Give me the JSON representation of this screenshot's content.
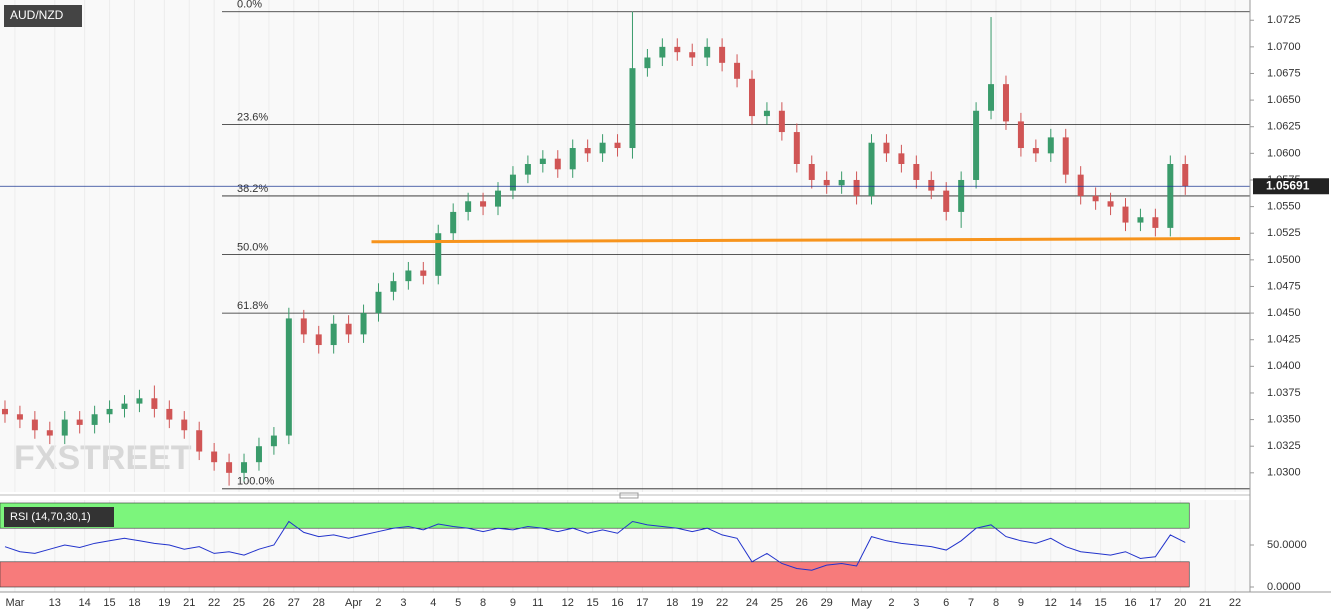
{
  "chart_data": {
    "type": "candlestick",
    "title": "AUD/NZD",
    "watermark": "FXSTREET",
    "up_color": "#3a9b6b",
    "down_color": "#d05555",
    "x": [
      0,
      3,
      6,
      9,
      12,
      15,
      18,
      21,
      24,
      27,
      30,
      33,
      36,
      39,
      42,
      45,
      48,
      51,
      54,
      57,
      60,
      63,
      66,
      69,
      72,
      75,
      78,
      81,
      84,
      87,
      90,
      93,
      96,
      99,
      102,
      105,
      108,
      111,
      114,
      117,
      120,
      123,
      126,
      129,
      132,
      135,
      138,
      141,
      144,
      147,
      150,
      153,
      156,
      159,
      162,
      165,
      168,
      171,
      174,
      177,
      180,
      183,
      186,
      189,
      192,
      195,
      198,
      201,
      204,
      207,
      210,
      213,
      216,
      219,
      222,
      225,
      228,
      231,
      234,
      237
    ],
    "open": [
      1.036,
      1.0355,
      1.035,
      1.034,
      1.0335,
      1.035,
      1.0345,
      1.0355,
      1.036,
      1.0365,
      1.037,
      1.036,
      1.035,
      1.034,
      1.032,
      1.031,
      1.03,
      1.031,
      1.0325,
      1.0335,
      1.0445,
      1.043,
      1.042,
      1.044,
      1.043,
      1.045,
      1.047,
      1.048,
      1.049,
      1.0485,
      1.0525,
      1.0545,
      1.0555,
      1.055,
      1.0565,
      1.058,
      1.059,
      1.0595,
      1.0585,
      1.0605,
      1.06,
      1.061,
      1.0605,
      1.068,
      1.069,
      1.07,
      1.0695,
      1.069,
      1.07,
      1.0685,
      1.067,
      1.0635,
      1.064,
      1.062,
      1.059,
      1.0575,
      1.057,
      1.0575,
      1.056,
      1.061,
      1.06,
      1.059,
      1.0575,
      1.0565,
      1.0545,
      1.0575,
      1.064,
      1.0665,
      1.063,
      1.0605,
      1.06,
      1.0615,
      1.058,
      1.056,
      1.0555,
      1.055,
      1.0535,
      1.054,
      1.053,
      1.059
    ],
    "high": [
      1.0368,
      1.0363,
      1.0358,
      1.0348,
      1.0358,
      1.0358,
      1.0363,
      1.0368,
      1.0373,
      1.0378,
      1.0382,
      1.0368,
      1.0358,
      1.0348,
      1.0328,
      1.0318,
      1.0318,
      1.0333,
      1.0343,
      1.0455,
      1.0453,
      1.0438,
      1.0448,
      1.0448,
      1.0458,
      1.0478,
      1.0488,
      1.0498,
      1.0498,
      1.0533,
      1.0553,
      1.0563,
      1.0563,
      1.0573,
      1.0588,
      1.0598,
      1.0603,
      1.0603,
      1.0613,
      1.0613,
      1.0618,
      1.0618,
      1.0733,
      1.0698,
      1.0708,
      1.0708,
      1.0703,
      1.0708,
      1.0708,
      1.0693,
      1.0678,
      1.0648,
      1.0648,
      1.0628,
      1.0598,
      1.0583,
      1.0583,
      1.0583,
      1.0618,
      1.0618,
      1.0608,
      1.0598,
      1.0583,
      1.0573,
      1.0583,
      1.0648,
      1.0728,
      1.0673,
      1.0638,
      1.0613,
      1.0623,
      1.0623,
      1.0588,
      1.0568,
      1.0563,
      1.0558,
      1.0548,
      1.0548,
      1.0598,
      1.0598
    ],
    "low": [
      1.0347,
      1.0342,
      1.0332,
      1.0327,
      1.0327,
      1.0337,
      1.0337,
      1.0347,
      1.0352,
      1.0357,
      1.0352,
      1.0342,
      1.0332,
      1.0312,
      1.0302,
      1.0288,
      1.0292,
      1.0302,
      1.0317,
      1.0327,
      1.0422,
      1.0412,
      1.0412,
      1.0422,
      1.0422,
      1.0442,
      1.0462,
      1.0472,
      1.0477,
      1.0477,
      1.0517,
      1.0537,
      1.0542,
      1.0542,
      1.0557,
      1.0572,
      1.0582,
      1.0577,
      1.0577,
      1.0592,
      1.0592,
      1.0597,
      1.0595,
      1.0672,
      1.0682,
      1.0687,
      1.0682,
      1.0682,
      1.0677,
      1.0662,
      1.0627,
      1.0627,
      1.0612,
      1.0582,
      1.0567,
      1.0562,
      1.0562,
      1.0552,
      1.0552,
      1.0592,
      1.0582,
      1.0567,
      1.0557,
      1.0537,
      1.053,
      1.0567,
      1.0632,
      1.0622,
      1.0597,
      1.0592,
      1.0592,
      1.0572,
      1.0552,
      1.0547,
      1.0542,
      1.0527,
      1.0527,
      1.0522,
      1.0522,
      1.0561
    ],
    "close": [
      1.0355,
      1.035,
      1.034,
      1.0335,
      1.035,
      1.0345,
      1.0355,
      1.036,
      1.0365,
      1.037,
      1.036,
      1.035,
      1.034,
      1.032,
      1.031,
      1.03,
      1.031,
      1.0325,
      1.0335,
      1.0445,
      1.043,
      1.042,
      1.044,
      1.043,
      1.045,
      1.047,
      1.048,
      1.049,
      1.0485,
      1.0525,
      1.0545,
      1.0555,
      1.055,
      1.0565,
      1.058,
      1.059,
      1.0595,
      1.0585,
      1.0605,
      1.06,
      1.061,
      1.0605,
      1.068,
      1.069,
      1.07,
      1.0695,
      1.069,
      1.07,
      1.0685,
      1.067,
      1.0635,
      1.064,
      1.062,
      1.059,
      1.0575,
      1.057,
      1.0575,
      1.056,
      1.061,
      1.06,
      1.059,
      1.0575,
      1.0565,
      1.0545,
      1.0575,
      1.064,
      1.0665,
      1.063,
      1.0605,
      1.06,
      1.0615,
      1.058,
      1.056,
      1.0555,
      1.055,
      1.0535,
      1.054,
      1.053,
      1.059,
      1.05691
    ],
    "last_color": "#1f3a93",
    "xlim": [
      -1,
      250
    ],
    "ylim": [
      1.0282,
      1.0744
    ],
    "yticks": [
      {
        "value": 1.03,
        "label": "1.0300"
      },
      {
        "value": 1.0325,
        "label": "1.0325"
      },
      {
        "value": 1.035,
        "label": "1.0350"
      },
      {
        "value": 1.0375,
        "label": "1.0375"
      },
      {
        "value": 1.04,
        "label": "1.0400"
      },
      {
        "value": 1.0425,
        "label": "1.0425"
      },
      {
        "value": 1.045,
        "label": "1.0450"
      },
      {
        "value": 1.0475,
        "label": "1.0475"
      },
      {
        "value": 1.05,
        "label": "1.0500"
      },
      {
        "value": 1.0525,
        "label": "1.0525"
      },
      {
        "value": 1.055,
        "label": "1.0550"
      },
      {
        "value": 1.0575,
        "label": "1.0575"
      },
      {
        "value": 1.06,
        "label": "1.0600"
      },
      {
        "value": 1.0625,
        "label": "1.0625"
      },
      {
        "value": 1.065,
        "label": "1.0650"
      },
      {
        "value": 1.0675,
        "label": "1.0675"
      },
      {
        "value": 1.07,
        "label": "1.0700"
      },
      {
        "value": 1.0725,
        "label": "1.0725"
      }
    ],
    "xticks": [
      {
        "value": 2,
        "label": "Mar"
      },
      {
        "value": 10,
        "label": "13"
      },
      {
        "value": 16,
        "label": "14"
      },
      {
        "value": 21,
        "label": "15"
      },
      {
        "value": 26,
        "label": "18"
      },
      {
        "value": 32,
        "label": "19"
      },
      {
        "value": 37,
        "label": "21"
      },
      {
        "value": 42,
        "label": "22"
      },
      {
        "value": 47,
        "label": "25"
      },
      {
        "value": 53,
        "label": "26"
      },
      {
        "value": 58,
        "label": "27"
      },
      {
        "value": 63,
        "label": "28"
      },
      {
        "value": 70,
        "label": "Apr"
      },
      {
        "value": 75,
        "label": "2"
      },
      {
        "value": 80,
        "label": "3"
      },
      {
        "value": 86,
        "label": "4"
      },
      {
        "value": 91,
        "label": "5"
      },
      {
        "value": 96,
        "label": "8"
      },
      {
        "value": 102,
        "label": "9"
      },
      {
        "value": 107,
        "label": "11"
      },
      {
        "value": 113,
        "label": "12"
      },
      {
        "value": 118,
        "label": "15"
      },
      {
        "value": 123,
        "label": "16"
      },
      {
        "value": 128,
        "label": "17"
      },
      {
        "value": 134,
        "label": "18"
      },
      {
        "value": 139,
        "label": "19"
      },
      {
        "value": 144,
        "label": "22"
      },
      {
        "value": 150,
        "label": "24"
      },
      {
        "value": 155,
        "label": "25"
      },
      {
        "value": 160,
        "label": "26"
      },
      {
        "value": 165,
        "label": "29"
      },
      {
        "value": 172,
        "label": "May"
      },
      {
        "value": 178,
        "label": "2"
      },
      {
        "value": 183,
        "label": "3"
      },
      {
        "value": 189,
        "label": "6"
      },
      {
        "value": 194,
        "label": "7"
      },
      {
        "value": 199,
        "label": "8"
      },
      {
        "value": 204,
        "label": "9"
      },
      {
        "value": 210,
        "label": "12"
      },
      {
        "value": 215,
        "label": "14"
      },
      {
        "value": 220,
        "label": "15"
      },
      {
        "value": 226,
        "label": "16"
      },
      {
        "value": 231,
        "label": "17"
      },
      {
        "value": 236,
        "label": "20"
      },
      {
        "value": 241,
        "label": "21"
      },
      {
        "value": 247,
        "label": "22"
      }
    ],
    "grid": true,
    "fib": [
      {
        "value": 1.0733,
        "label": "0.0%"
      },
      {
        "value": 1.0627,
        "label": "23.6%"
      },
      {
        "value": 1.056,
        "label": "38.2%"
      },
      {
        "value": 1.0505,
        "label": "50.0%"
      },
      {
        "value": 1.045,
        "label": "61.8%"
      },
      {
        "value": 1.0285,
        "label": "100.0%"
      }
    ],
    "trendline": {
      "x": [
        73.6,
        248
      ],
      "y": [
        1.0517,
        1.052
      ],
      "color": "#f7941d"
    },
    "rsi": {
      "title": "RSI (14,70,30,1)",
      "color": "#2233cc",
      "upper": 70,
      "lower": 30,
      "ylim": [
        0,
        100
      ],
      "yticks": [
        {
          "value": 50,
          "label": "50.0000"
        },
        {
          "value": 0,
          "label": "0.0000"
        }
      ],
      "values": [
        48,
        42,
        40,
        45,
        50,
        47,
        52,
        55,
        58,
        55,
        52,
        50,
        45,
        48,
        40,
        42,
        38,
        45,
        50,
        78,
        65,
        60,
        62,
        58,
        62,
        66,
        70,
        72,
        68,
        75,
        72,
        70,
        66,
        70,
        68,
        72,
        70,
        66,
        70,
        64,
        68,
        64,
        78,
        74,
        72,
        70,
        66,
        70,
        62,
        58,
        30,
        40,
        28,
        22,
        20,
        26,
        28,
        25,
        60,
        55,
        52,
        50,
        48,
        44,
        55,
        70,
        74,
        60,
        55,
        52,
        58,
        48,
        42,
        40,
        38,
        42,
        34,
        36,
        62,
        53
      ]
    }
  }
}
